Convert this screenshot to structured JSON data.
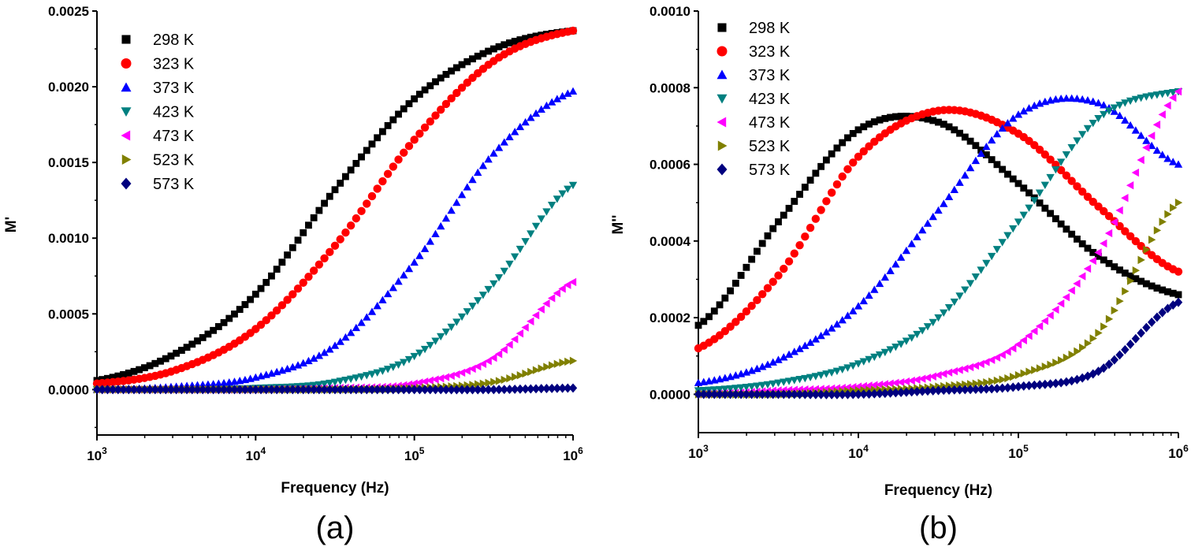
{
  "chart_data": [
    {
      "panel": "(a)",
      "type": "scatter",
      "xlabel": "Frequency (Hz)",
      "ylabel": "M'",
      "xscale": "log",
      "xlim": [
        1000,
        1000000
      ],
      "ylim": [
        -0.0003,
        0.0025
      ],
      "xticks": [
        {
          "base": "10",
          "exp": "3"
        },
        {
          "base": "10",
          "exp": "4"
        },
        {
          "base": "10",
          "exp": "5"
        },
        {
          "base": "10",
          "exp": "6"
        }
      ],
      "yticks": [
        "0.0000",
        "0.0005",
        "0.0010",
        "0.0015",
        "0.0020",
        "0.0025"
      ],
      "ytick_values": [
        0,
        0.0005,
        0.001,
        0.0015,
        0.002,
        0.0025
      ],
      "legend_position": "top-left",
      "x": [
        1000,
        3162,
        10000,
        31623,
        100000,
        316228,
        1000000
      ],
      "series": [
        {
          "name": "298 K",
          "color": "#000000",
          "marker": "square",
          "values": [
            6e-05,
            0.00024,
            0.00063,
            0.00132,
            0.00192,
            0.00225,
            0.00237
          ]
        },
        {
          "name": "323 K",
          "color": "#ff0000",
          "marker": "circle",
          "values": [
            4e-05,
            0.00013,
            0.0004,
            0.00095,
            0.00165,
            0.00217,
            0.00237
          ]
        },
        {
          "name": "373 K",
          "color": "#0000ff",
          "marker": "triangle-up",
          "values": [
            0.0,
            2e-05,
            8e-05,
            0.00029,
            0.00084,
            0.00156,
            0.00197
          ]
        },
        {
          "name": "423 K",
          "color": "#008080",
          "marker": "triangle-down",
          "values": [
            0.0,
            0.0,
            1e-05,
            5e-05,
            0.00022,
            0.0007,
            0.00135
          ]
        },
        {
          "name": "473 K",
          "color": "#ff00ff",
          "marker": "triangle-left",
          "values": [
            0.0,
            0.0,
            0.0,
            1e-05,
            4e-05,
            0.00021,
            0.00071
          ]
        },
        {
          "name": "523 K",
          "color": "#808000",
          "marker": "triangle-right",
          "values": [
            0.0,
            0.0,
            0.0,
            0.0,
            1e-05,
            5e-05,
            0.00019
          ]
        },
        {
          "name": "573 K",
          "color": "#00007f",
          "marker": "diamond",
          "values": [
            0.0,
            0.0,
            0.0,
            0.0,
            0.0,
            0.0,
            1e-05
          ]
        }
      ]
    },
    {
      "panel": "(b)",
      "type": "scatter",
      "xlabel": "Frequency (Hz)",
      "ylabel": "M''",
      "xscale": "log",
      "xlim": [
        1000,
        1000000
      ],
      "ylim": [
        -0.0001,
        0.001
      ],
      "xticks": [
        {
          "base": "10",
          "exp": "3"
        },
        {
          "base": "10",
          "exp": "4"
        },
        {
          "base": "10",
          "exp": "5"
        },
        {
          "base": "10",
          "exp": "6"
        }
      ],
      "yticks": [
        "0.0000",
        "0.0002",
        "0.0004",
        "0.0006",
        "0.0008",
        "0.0010"
      ],
      "ytick_values": [
        0,
        0.0002,
        0.0004,
        0.0006,
        0.0008,
        0.001
      ],
      "legend_position": "top-left",
      "x": [
        1000,
        3162,
        10000,
        31623,
        100000,
        316228,
        1000000
      ],
      "series": [
        {
          "name": "298 K",
          "color": "#000000",
          "marker": "square",
          "values": [
            0.00018,
            0.00045,
            0.00069,
            0.00071,
            0.00055,
            0.00036,
            0.00026
          ]
        },
        {
          "name": "323 K",
          "color": "#ff0000",
          "marker": "circle",
          "values": [
            0.00012,
            0.00031,
            0.00062,
            0.00074,
            0.00068,
            0.00049,
            0.00032
          ]
        },
        {
          "name": "373 K",
          "color": "#0000ff",
          "marker": "triangle-up",
          "values": [
            3e-05,
            9e-05,
            0.00023,
            0.00048,
            0.00073,
            0.00076,
            0.0006
          ]
        },
        {
          "name": "423 K",
          "color": "#008080",
          "marker": "triangle-down",
          "values": [
            1e-05,
            3e-05,
            8e-05,
            0.0002,
            0.00045,
            0.00072,
            0.00079
          ]
        },
        {
          "name": "473 K",
          "color": "#ff00ff",
          "marker": "triangle-left",
          "values": [
            0.0,
            1e-05,
            2e-05,
            5e-05,
            0.00013,
            0.00037,
            0.00079
          ]
        },
        {
          "name": "523 K",
          "color": "#808000",
          "marker": "triangle-right",
          "values": [
            0.0,
            0.0,
            1e-05,
            2e-05,
            5e-05,
            0.00016,
            0.0005
          ]
        },
        {
          "name": "573 K",
          "color": "#00007f",
          "marker": "diamond",
          "values": [
            0.0,
            0.0,
            0.0,
            1e-05,
            2e-05,
            6e-05,
            0.00024
          ]
        }
      ]
    }
  ]
}
